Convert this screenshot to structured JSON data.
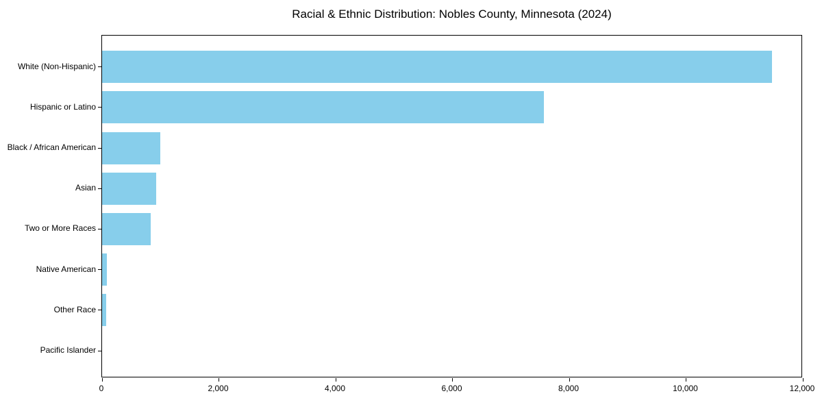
{
  "title": "Racial & Ethnic Distribution: Nobles County, Minnesota (2024)",
  "colors": {
    "bar": "#87CEEB",
    "axis": "#000000",
    "background": "#FFFFFF",
    "text": "#000000"
  },
  "chart_data": {
    "type": "bar",
    "orientation": "horizontal",
    "title": "Racial & Ethnic Distribution: Nobles County, Minnesota (2024)",
    "xlabel": "",
    "ylabel": "",
    "grid": false,
    "legend": null,
    "categories": [
      "White (Non-Hispanic)",
      "Hispanic or Latino",
      "Black / African American",
      "Asian",
      "Two or More Races",
      "Native American",
      "Other Race",
      "Pacific Islander"
    ],
    "values": [
      11500,
      7580,
      1000,
      930,
      840,
      80,
      75,
      0
    ],
    "xlim": [
      0,
      12000
    ],
    "x_ticks": [
      0,
      2000,
      4000,
      6000,
      8000,
      10000,
      12000
    ],
    "x_tick_labels": [
      "0",
      "2,000",
      "4,000",
      "6,000",
      "8,000",
      "10,000",
      "12,000"
    ],
    "bar_color": "#87CEEB"
  }
}
